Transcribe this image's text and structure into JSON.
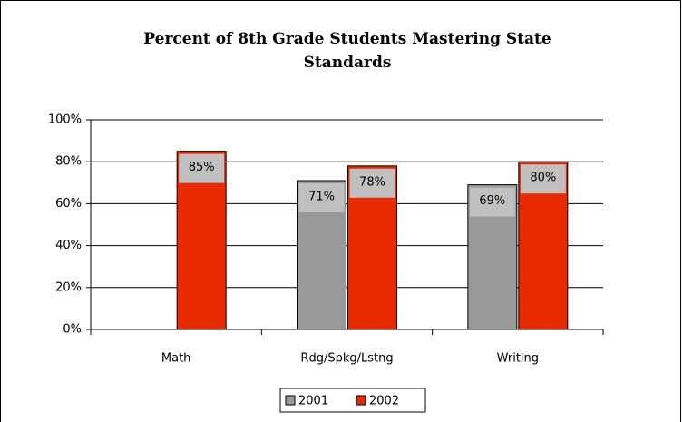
{
  "chart_data": {
    "type": "bar",
    "title": "Percent of 8th Grade Students Mastering State Standards",
    "categories": [
      "Math",
      "Rdg/Spkg/Lstng",
      "Writing"
    ],
    "series": [
      {
        "name": "2001",
        "color": "#999999",
        "values": [
          null,
          71,
          69
        ],
        "value_labels": [
          null,
          "71%",
          "69%"
        ]
      },
      {
        "name": "2002",
        "color": "#e82a00",
        "values": [
          85,
          78,
          80
        ],
        "value_labels": [
          "85%",
          "78%",
          "80%"
        ]
      }
    ],
    "ylim": [
      0,
      100
    ],
    "yticks": [
      {
        "value": 0,
        "label": "0%"
      },
      {
        "value": 20,
        "label": "20%"
      },
      {
        "value": 40,
        "label": "40%"
      },
      {
        "value": 60,
        "label": "60%"
      },
      {
        "value": 80,
        "label": "80%"
      },
      {
        "value": 100,
        "label": "100%"
      }
    ],
    "grid": true,
    "legend": "bottom"
  }
}
